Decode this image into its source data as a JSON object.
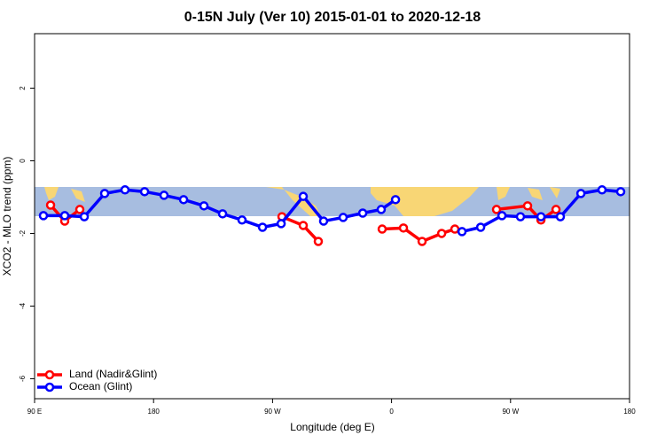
{
  "chart_data": {
    "type": "line",
    "title": "0-15N July (Ver 10)   2015-01-01 to 2020-12-18",
    "x_label": "Longitude (deg E)",
    "y_label": "XCO2 - MLO trend (ppm)",
    "xlim": [
      90,
      540
    ],
    "xticks": [
      {
        "value": 90,
        "label": "90 E"
      },
      {
        "value": 180,
        "label": "180"
      },
      {
        "value": 270,
        "label": "90 W"
      },
      {
        "value": 360,
        "label": "0"
      },
      {
        "value": 450,
        "label": "90 W"
      },
      {
        "value": 540,
        "label": "180"
      }
    ],
    "ylim": [
      -6.55,
      3.5
    ],
    "yticks": [
      -6,
      -4,
      -2,
      0,
      2
    ],
    "legend": "bottom-left",
    "series": [
      {
        "name": "Land (Nadir&Glint)",
        "color": "#ff0000",
        "x": [
          102.1,
          112.8,
          124.2,
          null,
          277.1,
          293.2,
          304.6,
          null,
          352.9,
          369.0,
          383.1,
          397.9,
          407.9,
          null,
          439.4,
          462.9,
          473.0,
          484.4
        ],
        "values": [
          -1.22,
          -1.66,
          -1.34,
          null,
          -1.54,
          -1.78,
          -2.22,
          null,
          -1.88,
          -1.85,
          -2.22,
          -2.0,
          -1.88,
          null,
          -1.34,
          -1.24,
          -1.63,
          -1.34
        ]
      },
      {
        "name": "Ocean (Glint)",
        "color": "#0000ff",
        "x": [
          96.7,
          112.8,
          127.6,
          143.0,
          158.4,
          173.2,
          187.9,
          202.7,
          218.1,
          232.2,
          246.9,
          262.4,
          276.5,
          293.2,
          308.6,
          323.4,
          338.2,
          352.2,
          363.0,
          null,
          413.3,
          427.4,
          443.5,
          457.5,
          473.0,
          487.7,
          503.2,
          519.2,
          533.3
        ],
        "values": [
          -1.51,
          -1.51,
          -1.54,
          -0.9,
          -0.8,
          -0.85,
          -0.95,
          -1.07,
          -1.24,
          -1.46,
          -1.63,
          -1.83,
          -1.73,
          -0.98,
          -1.66,
          -1.56,
          -1.44,
          -1.34,
          -1.07,
          null,
          -1.95,
          -1.83,
          -1.51,
          -1.54,
          -1.54,
          -1.54,
          -0.9,
          -0.8,
          -0.85
        ]
      }
    ]
  }
}
